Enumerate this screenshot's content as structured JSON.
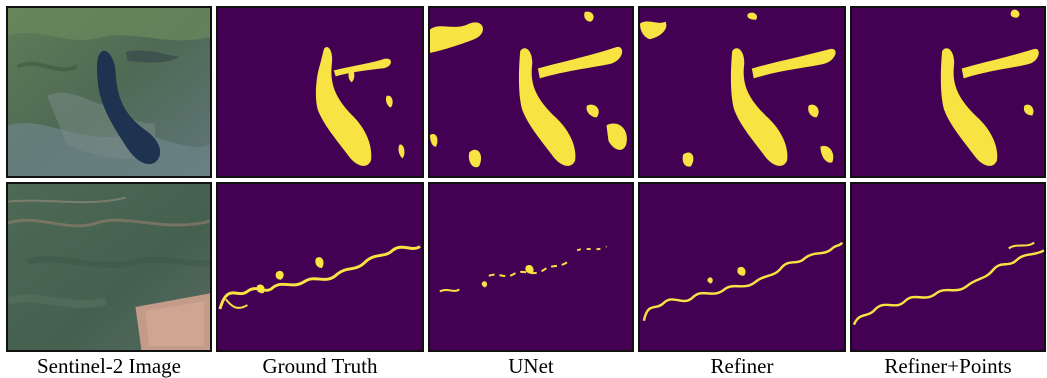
{
  "figure": {
    "columns": [
      {
        "label": "Sentinel-2 Image"
      },
      {
        "label": "Ground Truth"
      },
      {
        "label": "UNet"
      },
      {
        "label": "Refiner"
      },
      {
        "label": "Refiner+Points"
      }
    ],
    "rows": [
      {
        "scene": "lake-scene"
      },
      {
        "scene": "river-scene"
      }
    ],
    "colors": {
      "mask_background": "#440154",
      "mask_water": "#f7e342",
      "satellite_green": "#4e6a4c",
      "satellite_water": "#1e3350",
      "panel_border": "#111111"
    }
  }
}
